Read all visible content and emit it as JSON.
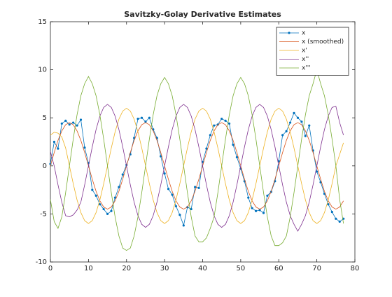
{
  "chart_data": {
    "type": "line",
    "title": "Savitzky-Golay Derivative Estimates",
    "x": [
      0,
      1,
      2,
      3,
      4,
      5,
      6,
      7,
      8,
      9,
      10,
      11,
      12,
      13,
      14,
      15,
      16,
      17,
      18,
      19,
      20,
      21,
      22,
      23,
      24,
      25,
      26,
      27,
      28,
      29,
      30,
      31,
      32,
      33,
      34,
      35,
      36,
      37,
      38,
      39,
      40,
      41,
      42,
      43,
      44,
      45,
      46,
      47,
      48,
      49,
      50,
      51,
      52,
      53,
      54,
      55,
      56,
      57,
      58,
      59,
      60,
      61,
      62,
      63,
      64,
      65,
      66,
      67,
      68,
      69,
      70,
      71,
      72,
      73,
      74,
      75,
      76,
      77
    ],
    "series": [
      {
        "name": "x",
        "color": "#0072BD",
        "marker": "point",
        "values": [
          0.2,
          2.5,
          1.8,
          4.4,
          4.7,
          4.3,
          4.5,
          4.2,
          4.8,
          1.9,
          0.3,
          -2.5,
          -3.1,
          -4.0,
          -4.5,
          -5.0,
          -4.7,
          -3.3,
          -2.2,
          -0.9,
          0.1,
          1.2,
          2.9,
          4.9,
          5.0,
          4.6,
          5.0,
          3.8,
          2.9,
          1.0,
          -0.8,
          -2.4,
          -3.0,
          -4.2,
          -5.1,
          -6.2,
          -4.3,
          -4.5,
          -2.2,
          -2.3,
          0.4,
          1.8,
          3.2,
          4.2,
          4.3,
          4.9,
          4.7,
          4.4,
          2.2,
          0.9,
          -0.3,
          -1.6,
          -3.3,
          -4.4,
          -4.7,
          -4.6,
          -4.9,
          -3.1,
          -2.7,
          -1.6,
          0.5,
          3.2,
          3.6,
          4.5,
          5.5,
          5.0,
          4.6,
          3.1,
          4.2,
          1.6,
          -0.6,
          -1.7,
          -2.9,
          -4.0,
          -4.8,
          -5.5,
          -5.8,
          -5.5
        ]
      },
      {
        "name": "x (smoothed)",
        "color": "#D95319",
        "values": [
          0,
          1.39,
          2.65,
          3.64,
          4.28,
          4.5,
          4.28,
          3.64,
          2.65,
          1.39,
          0,
          -1.39,
          -2.65,
          -3.64,
          -4.28,
          -4.5,
          -4.28,
          -3.64,
          -2.65,
          -1.39,
          0,
          1.39,
          2.65,
          3.64,
          4.28,
          4.5,
          4.28,
          3.64,
          2.65,
          1.39,
          0,
          -1.39,
          -2.65,
          -3.64,
          -4.28,
          -4.5,
          -4.28,
          -3.64,
          -2.65,
          -1.39,
          0,
          1.39,
          2.65,
          3.64,
          4.28,
          4.5,
          4.28,
          3.64,
          2.65,
          1.39,
          0,
          -1.39,
          -2.65,
          -3.64,
          -4.28,
          -4.5,
          -4.28,
          -3.64,
          -2.65,
          -1.39,
          0,
          1.39,
          2.65,
          3.64,
          4.28,
          4.5,
          4.28,
          3.64,
          2.65,
          1.39,
          0,
          -1.39,
          -2.65,
          -3.64,
          -4.28,
          -4.5,
          -4.28,
          -3.64
        ]
      },
      {
        "name": "x'",
        "color": "#EDB120",
        "values": [
          3.2,
          3.5,
          3.4,
          3.0,
          1.86,
          0,
          -1.86,
          -3.54,
          -4.86,
          -5.7,
          -6,
          -5.7,
          -4.86,
          -3.54,
          -1.86,
          0,
          1.86,
          3.54,
          4.86,
          5.7,
          6,
          5.7,
          4.86,
          3.54,
          1.86,
          0,
          -1.86,
          -3.54,
          -4.86,
          -5.7,
          -6,
          -5.7,
          -4.86,
          -3.54,
          -1.86,
          0,
          1.86,
          3.54,
          4.86,
          5.7,
          6,
          5.7,
          4.86,
          3.54,
          1.86,
          0,
          -1.86,
          -3.54,
          -4.86,
          -5.7,
          -6,
          -5.7,
          -4.86,
          -3.54,
          -1.86,
          0,
          1.86,
          3.54,
          4.86,
          5.7,
          6,
          5.7,
          4.86,
          3.54,
          1.86,
          0,
          -1.86,
          -3.54,
          -4.86,
          -5.7,
          -6,
          -5.7,
          -4.86,
          -3.54,
          -1.86,
          0,
          1.2,
          2.4
        ]
      },
      {
        "name": "x''",
        "color": "#7E2F8E",
        "values": [
          1.5,
          0,
          -1.98,
          -3.78,
          -5.18,
          -5.3,
          -5.1,
          -4.6,
          -3.78,
          -1.98,
          0,
          1.98,
          3.78,
          5.18,
          6.08,
          6.4,
          6.08,
          5.18,
          3.78,
          1.98,
          0,
          -1.98,
          -3.78,
          -5.18,
          -6.08,
          -6.4,
          -6.08,
          -5.18,
          -3.78,
          -1.98,
          0,
          1.98,
          3.78,
          5.18,
          6.08,
          6.4,
          6.08,
          5.18,
          3.78,
          1.98,
          0,
          -1.98,
          -3.78,
          -5.18,
          -6.08,
          -6.4,
          -6.08,
          -5.18,
          -3.78,
          -1.98,
          0,
          1.98,
          3.78,
          5.18,
          6.08,
          6.4,
          6.08,
          5.18,
          3.78,
          1.98,
          0,
          -1.98,
          -3.78,
          -5.18,
          -6.08,
          -6.8,
          -6.08,
          -5.18,
          -3.78,
          -1.98,
          0,
          1.98,
          3.78,
          5.18,
          6.08,
          6.2,
          4.5,
          3.2
        ]
      },
      {
        "name": "x'''",
        "color": "#77AC30",
        "values": [
          -3.5,
          -5.8,
          -6.5,
          -5.31,
          -2.79,
          0,
          2.79,
          5.31,
          7.29,
          8.55,
          9.3,
          8.55,
          7.29,
          5.31,
          2.79,
          0,
          -2.79,
          -5.31,
          -7.29,
          -8.55,
          -8.8,
          -8.55,
          -7.29,
          -5.31,
          -2.79,
          0,
          2.79,
          5.31,
          7.29,
          8.55,
          9.2,
          8.55,
          7.29,
          5.31,
          2.79,
          0,
          -2.79,
          -5.31,
          -7.29,
          -7.9,
          -7.9,
          -7.5,
          -6.5,
          -5.31,
          -2.79,
          0,
          2.79,
          5.31,
          7.29,
          8.55,
          9.2,
          8.55,
          7.29,
          5.31,
          2.79,
          0,
          -2.79,
          -5.31,
          -7.29,
          -8.3,
          -8.3,
          -8.0,
          -7.29,
          -5.31,
          -2.79,
          0,
          2.79,
          5.31,
          7.29,
          8.55,
          10,
          8.55,
          7.29,
          5.31,
          2.79,
          0,
          -3.5,
          -6
        ]
      }
    ],
    "xlim": [
      0,
      80
    ],
    "xticks": [
      0,
      10,
      20,
      30,
      40,
      50,
      60,
      70,
      80
    ],
    "ylim": [
      -10,
      15
    ],
    "yticks": [
      -10,
      -5,
      0,
      5,
      10,
      15
    ],
    "legend": "top-right",
    "grid": false
  }
}
